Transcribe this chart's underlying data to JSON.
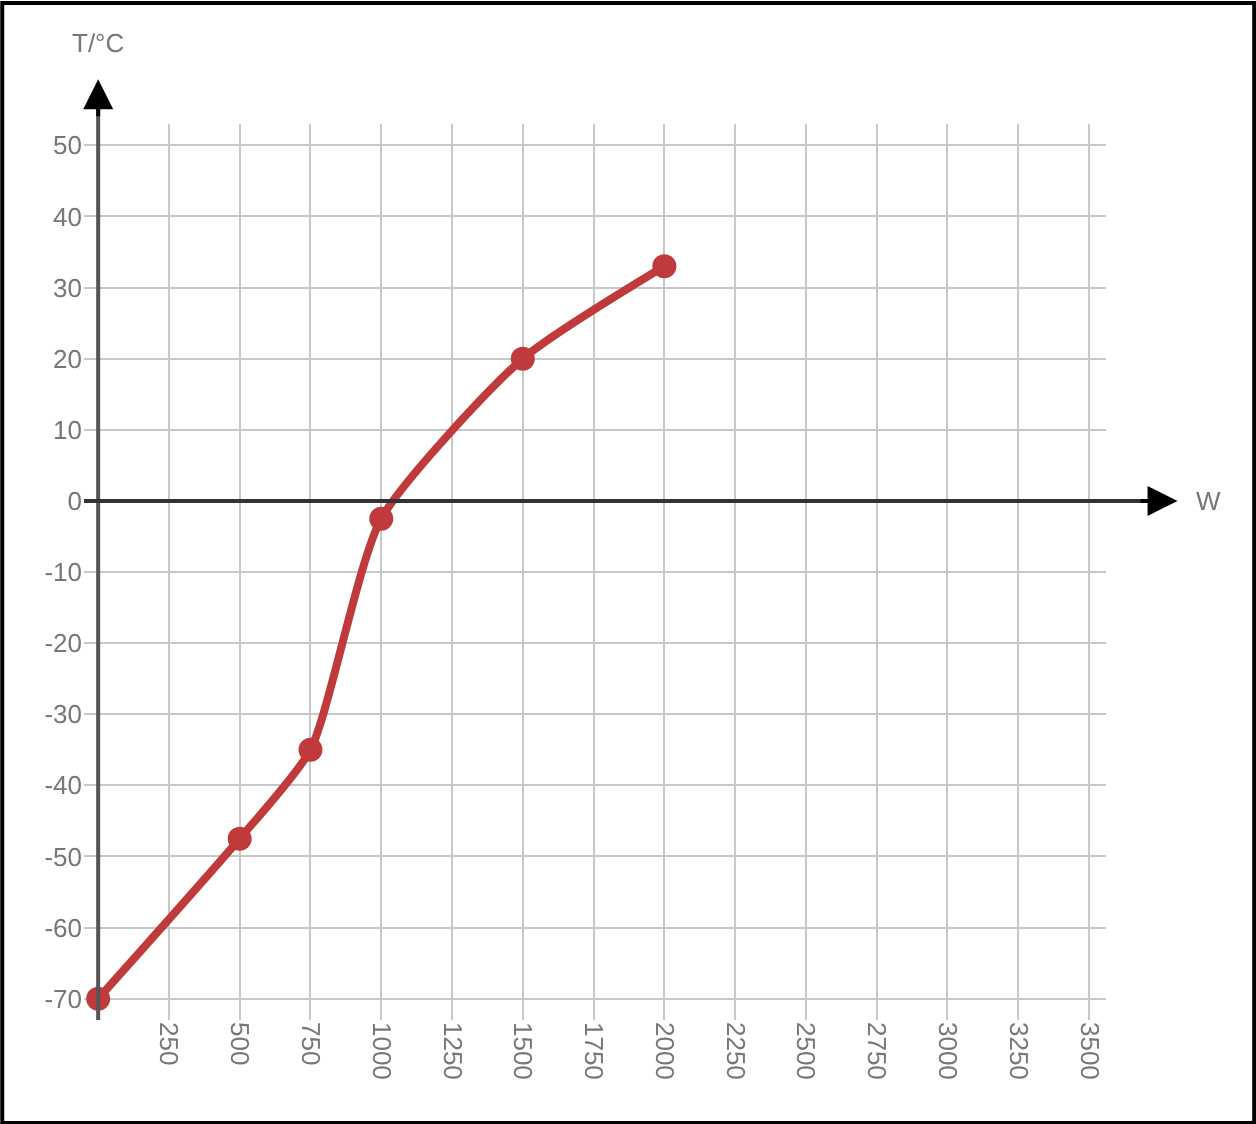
{
  "chart_data": {
    "type": "line",
    "xlabel": "W",
    "ylabel": "T/°C",
    "x": [
      0,
      500,
      750,
      1000,
      1500,
      2000
    ],
    "series": [
      {
        "color": "#c0393b",
        "values": [
          -70,
          -47.5,
          -35,
          -2.5,
          20,
          33
        ]
      }
    ],
    "xlim": [
      -50,
      3560
    ],
    "ylim": [
      -73,
      53
    ],
    "xticks": [
      {
        "value": 0,
        "label": null
      },
      250,
      500,
      750,
      1000,
      1250,
      1500,
      1750,
      2000,
      2250,
      2500,
      2750,
      3000,
      3250,
      3500
    ],
    "yticks": [
      -70,
      -60,
      -50,
      -40,
      -30,
      -20,
      -10,
      0,
      10,
      20,
      30,
      40,
      50
    ],
    "grid": true,
    "marker": "circle",
    "line_style": "solid"
  }
}
